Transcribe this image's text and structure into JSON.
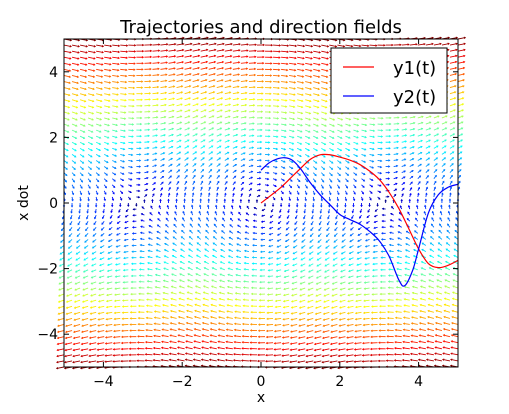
{
  "chart_data": {
    "type": "quiver+line",
    "title": "Trajectories and direction fields",
    "xlabel": "x",
    "ylabel": "x dot",
    "xlim": [
      -5,
      5
    ],
    "ylim": [
      -5,
      5
    ],
    "xticks": [
      -4,
      -2,
      0,
      2,
      4
    ],
    "yticks": [
      -4,
      -2,
      0,
      2,
      4
    ],
    "xtick_labels": [
      "−4",
      "−2",
      "0",
      "2",
      "4"
    ],
    "ytick_labels": [
      "−4",
      "−2",
      "0",
      "2",
      "4"
    ],
    "grid": false,
    "legend_position": "top-right",
    "direction_field": {
      "x_range": [
        -5,
        5
      ],
      "y_range": [
        -5,
        5
      ],
      "nx": 50,
      "ny": 55,
      "system": "dx/dt = x dot, d(x dot)/dt = -sin(x)",
      "colormap": "jet (magnitude)"
    },
    "series": [
      {
        "name": "y1(t)",
        "color": "#ff0000",
        "points": [
          [
            0,
            0
          ],
          [
            0.25,
            0.23
          ],
          [
            0.5,
            0.47
          ],
          [
            0.75,
            0.76
          ],
          [
            1.0,
            1.05
          ],
          [
            1.25,
            1.33
          ],
          [
            1.5,
            1.47
          ],
          [
            1.75,
            1.47
          ],
          [
            2.0,
            1.4
          ],
          [
            2.25,
            1.31
          ],
          [
            2.5,
            1.18
          ],
          [
            2.75,
            0.98
          ],
          [
            3.0,
            0.72
          ],
          [
            3.25,
            0.33
          ],
          [
            3.5,
            -0.17
          ],
          [
            3.75,
            -0.78
          ],
          [
            4.0,
            -1.4
          ],
          [
            4.25,
            -1.85
          ],
          [
            4.5,
            -1.97
          ],
          [
            4.75,
            -1.9
          ],
          [
            5.0,
            -1.75
          ]
        ]
      },
      {
        "name": "y2(t)",
        "color": "#0000ff",
        "points": [
          [
            0,
            1.0
          ],
          [
            0.2,
            1.22
          ],
          [
            0.4,
            1.34
          ],
          [
            0.6,
            1.38
          ],
          [
            0.8,
            1.3
          ],
          [
            1.0,
            1.05
          ],
          [
            1.25,
            0.62
          ],
          [
            1.5,
            0.25
          ],
          [
            1.75,
            -0.05
          ],
          [
            2.0,
            -0.35
          ],
          [
            2.25,
            -0.5
          ],
          [
            2.5,
            -0.64
          ],
          [
            2.75,
            -0.86
          ],
          [
            3.0,
            -1.15
          ],
          [
            3.25,
            -1.62
          ],
          [
            3.5,
            -2.35
          ],
          [
            3.65,
            -2.52
          ],
          [
            3.85,
            -2.05
          ],
          [
            4.0,
            -1.4
          ],
          [
            4.25,
            -0.3
          ],
          [
            4.5,
            0.25
          ],
          [
            4.75,
            0.48
          ],
          [
            5.0,
            0.57
          ]
        ]
      }
    ]
  }
}
